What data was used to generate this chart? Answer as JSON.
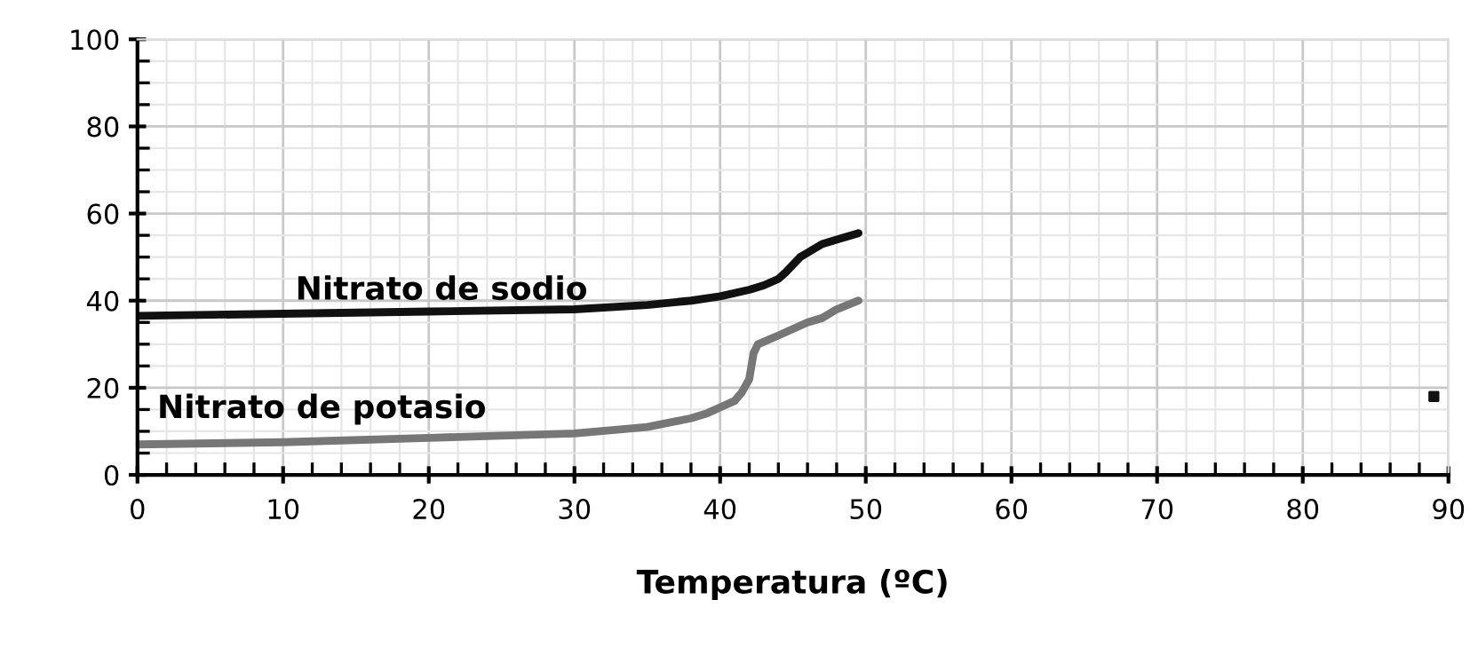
{
  "chart_data": {
    "type": "line",
    "xlabel": "Temperatura (ºC)",
    "xlim": [
      0,
      90
    ],
    "xticks": [
      0,
      10,
      20,
      30,
      40,
      50,
      60,
      70,
      80,
      90
    ],
    "ylim": [
      0,
      100
    ],
    "yticks": [
      0,
      20,
      40,
      60,
      80,
      100
    ],
    "grid": true,
    "legend": false,
    "marker": "none",
    "line_style": "solid",
    "series": [
      {
        "name": "Nitrato de sodio",
        "color": "#111111",
        "x": [
          0,
          10,
          20,
          30,
          35,
          38,
          40,
          42,
          43,
          44,
          44.5,
          45.5,
          46,
          47,
          48,
          49.5
        ],
        "values": [
          36.5,
          37,
          37.5,
          38,
          39,
          40,
          41,
          42.5,
          43.5,
          45,
          46.5,
          50,
          51,
          53,
          54,
          55.5
        ]
      },
      {
        "name": "Nitrato de potasio",
        "color": "#777777",
        "x": [
          0,
          10,
          20,
          30,
          35,
          38,
          39,
          40,
          41,
          41.5,
          42,
          42.3,
          42.6,
          44,
          46,
          47,
          48,
          49.5
        ],
        "values": [
          7,
          7.5,
          8.5,
          9.5,
          11,
          13,
          14,
          15.5,
          17,
          19,
          22,
          28,
          30,
          32,
          35,
          36,
          38,
          40
        ]
      },
      {
        "type": "scatter",
        "color": "#111111",
        "marker": "square",
        "x": [
          89
        ],
        "values": [
          18
        ]
      }
    ]
  }
}
